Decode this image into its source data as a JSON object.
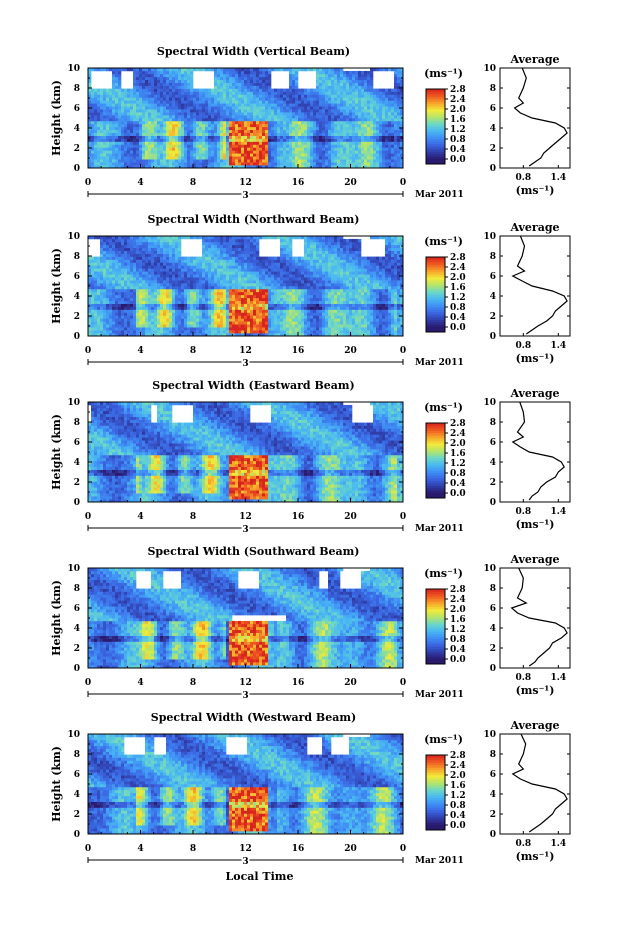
{
  "figure": {
    "time_axis_label": "Local Time",
    "date_label": "Mar 2011",
    "day_label": "3",
    "colorbar_unit": "(ms⁻¹)",
    "average_title": "Average",
    "average_xlabel": "(ms⁻¹)"
  },
  "chart_data": [
    {
      "type": "heatmap",
      "title": "Spectral Width (Vertical Beam)",
      "xlabel": "",
      "ylabel": "Height (km)",
      "x_ticks": [
        "0",
        "4",
        "8",
        "12",
        "16",
        "20",
        "0"
      ],
      "y_ticks": [
        "0",
        "2",
        "4",
        "6",
        "8",
        "10"
      ],
      "xlim": [
        0,
        24
      ],
      "ylim": [
        0,
        10
      ],
      "colorbar_ticks": [
        "0.0",
        "0.4",
        "0.8",
        "1.2",
        "1.6",
        "2.0",
        "2.4",
        "2.8"
      ],
      "colorbar_range": [
        0,
        2.8
      ],
      "average_profile": {
        "xlim": [
          0.4,
          1.6
        ],
        "x_ticks": [
          "0.8",
          "1.4"
        ],
        "y_ticks": [
          "0",
          "2",
          "4",
          "6",
          "8",
          "10"
        ],
        "height_km": [
          0.2,
          0.6,
          1.0,
          1.5,
          2.0,
          2.5,
          3.0,
          3.5,
          4.0,
          4.5,
          5.0,
          5.5,
          6.0,
          6.5,
          7.0,
          8.0,
          9.0,
          10.0
        ],
        "width": [
          0.9,
          1.0,
          1.1,
          1.15,
          1.25,
          1.35,
          1.45,
          1.55,
          1.5,
          1.35,
          0.95,
          0.75,
          0.65,
          0.8,
          0.72,
          0.8,
          0.85,
          0.78
        ]
      }
    },
    {
      "type": "heatmap",
      "title": "Spectral Width (Northward Beam)",
      "xlabel": "",
      "ylabel": "Height (km)",
      "x_ticks": [
        "0",
        "4",
        "8",
        "12",
        "16",
        "20",
        "0"
      ],
      "y_ticks": [
        "0",
        "2",
        "4",
        "6",
        "8",
        "10"
      ],
      "xlim": [
        0,
        24
      ],
      "ylim": [
        0,
        10
      ],
      "colorbar_ticks": [
        "0.0",
        "0.4",
        "0.8",
        "1.2",
        "1.6",
        "2.0",
        "2.4",
        "2.8"
      ],
      "colorbar_range": [
        0,
        2.8
      ],
      "average_profile": {
        "xlim": [
          0.4,
          1.6
        ],
        "x_ticks": [
          "0.8",
          "1.4"
        ],
        "y_ticks": [
          "0",
          "2",
          "4",
          "6",
          "8",
          "10"
        ],
        "height_km": [
          0.2,
          0.6,
          1.0,
          1.5,
          2.0,
          2.5,
          3.0,
          3.5,
          4.0,
          4.5,
          5.0,
          5.5,
          6.0,
          6.5,
          7.0,
          8.0,
          9.0,
          10.0
        ],
        "width": [
          0.85,
          0.95,
          1.05,
          1.2,
          1.3,
          1.35,
          1.45,
          1.55,
          1.5,
          1.3,
          0.95,
          0.78,
          0.62,
          0.82,
          0.7,
          0.78,
          0.82,
          0.75
        ]
      }
    },
    {
      "type": "heatmap",
      "title": "Spectral Width (Eastward Beam)",
      "xlabel": "",
      "ylabel": "Height (km)",
      "x_ticks": [
        "0",
        "4",
        "8",
        "12",
        "16",
        "20",
        "0"
      ],
      "y_ticks": [
        "0",
        "2",
        "4",
        "6",
        "8",
        "10"
      ],
      "xlim": [
        0,
        24
      ],
      "ylim": [
        0,
        10
      ],
      "colorbar_ticks": [
        "0.0",
        "0.4",
        "0.8",
        "1.2",
        "1.6",
        "2.0",
        "2.4",
        "2.8"
      ],
      "colorbar_range": [
        0,
        2.8
      ],
      "average_profile": {
        "xlim": [
          0.4,
          1.6
        ],
        "x_ticks": [
          "0.8",
          "1.4"
        ],
        "y_ticks": [
          "0",
          "2",
          "4",
          "6",
          "8",
          "10"
        ],
        "height_km": [
          0.2,
          0.6,
          1.0,
          1.5,
          2.0,
          2.5,
          3.0,
          3.5,
          4.0,
          4.5,
          5.0,
          5.5,
          6.0,
          6.5,
          7.0,
          8.0,
          9.0,
          10.0
        ],
        "width": [
          0.9,
          0.95,
          1.05,
          1.1,
          1.2,
          1.35,
          1.4,
          1.5,
          1.45,
          1.3,
          0.9,
          0.75,
          0.62,
          0.8,
          0.7,
          0.82,
          0.8,
          0.74
        ]
      }
    },
    {
      "type": "heatmap",
      "title": "Spectral Width (Southward Beam)",
      "xlabel": "",
      "ylabel": "Height (km)",
      "x_ticks": [
        "0",
        "4",
        "8",
        "12",
        "16",
        "20",
        "0"
      ],
      "y_ticks": [
        "0",
        "2",
        "4",
        "6",
        "8",
        "10"
      ],
      "xlim": [
        0,
        24
      ],
      "ylim": [
        0,
        10
      ],
      "colorbar_ticks": [
        "0.0",
        "0.4",
        "0.8",
        "1.2",
        "1.6",
        "2.0",
        "2.4",
        "2.8"
      ],
      "colorbar_range": [
        0,
        2.8
      ],
      "average_profile": {
        "xlim": [
          0.4,
          1.6
        ],
        "x_ticks": [
          "0.8",
          "1.4"
        ],
        "y_ticks": [
          "0",
          "2",
          "4",
          "6",
          "8",
          "10"
        ],
        "height_km": [
          0.2,
          0.6,
          1.0,
          1.5,
          2.0,
          2.5,
          3.0,
          3.5,
          4.0,
          4.5,
          5.0,
          5.5,
          6.0,
          6.5,
          7.0,
          8.0,
          9.0,
          10.0
        ],
        "width": [
          0.9,
          1.0,
          1.05,
          1.15,
          1.25,
          1.3,
          1.45,
          1.55,
          1.5,
          1.35,
          0.9,
          0.7,
          0.6,
          0.85,
          0.7,
          0.78,
          0.8,
          0.72
        ]
      }
    },
    {
      "type": "heatmap",
      "title": "Spectral Width (Westward Beam)",
      "xlabel": "Local Time",
      "ylabel": "Height (km)",
      "x_ticks": [
        "0",
        "4",
        "8",
        "12",
        "16",
        "20",
        "0"
      ],
      "y_ticks": [
        "0",
        "2",
        "4",
        "6",
        "8",
        "10"
      ],
      "xlim": [
        0,
        24
      ],
      "ylim": [
        0,
        10
      ],
      "colorbar_ticks": [
        "0.0",
        "0.4",
        "0.8",
        "1.2",
        "1.6",
        "2.0",
        "2.4",
        "2.8"
      ],
      "colorbar_range": [
        0,
        2.8
      ],
      "average_profile": {
        "xlim": [
          0.4,
          1.6
        ],
        "x_ticks": [
          "0.8",
          "1.4"
        ],
        "y_ticks": [
          "0",
          "2",
          "4",
          "6",
          "8",
          "10"
        ],
        "height_km": [
          0.2,
          0.6,
          1.0,
          1.5,
          2.0,
          2.5,
          3.0,
          3.5,
          4.0,
          4.5,
          5.0,
          5.5,
          6.0,
          6.5,
          7.0,
          8.0,
          9.0,
          10.0
        ],
        "width": [
          0.9,
          1.0,
          1.1,
          1.2,
          1.3,
          1.35,
          1.45,
          1.55,
          1.5,
          1.35,
          0.95,
          0.75,
          0.62,
          0.8,
          0.72,
          0.8,
          0.84,
          0.76
        ]
      }
    }
  ],
  "colors": {
    "colormap": [
      "#2a1a6e",
      "#2f3ea8",
      "#3a64e0",
      "#3f8df5",
      "#4ab8f2",
      "#6bd7c8",
      "#b4e46a",
      "#f2ea3a",
      "#f7a52a",
      "#ef5a22",
      "#d8241e"
    ]
  }
}
